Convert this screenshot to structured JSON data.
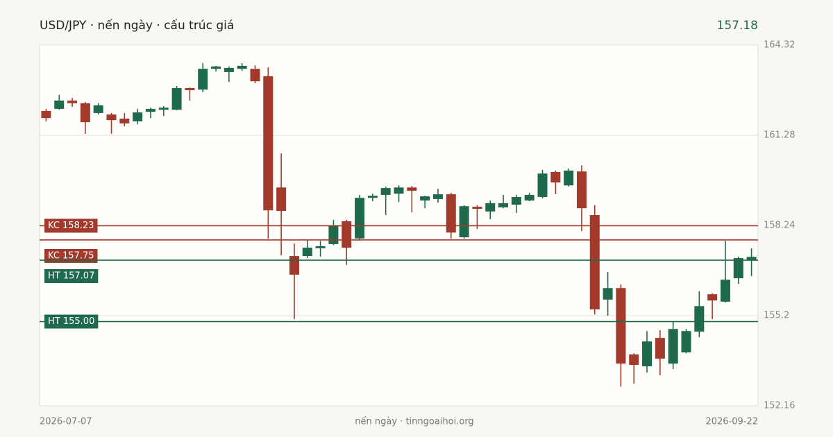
{
  "chart_data": {
    "type": "candlestick",
    "title": "USD/JPY · nến ngày · cấu trúc giá",
    "last_price": {
      "value": 157.18,
      "label": "157.18"
    },
    "footer": "nến ngày · tinngoaihoi.org",
    "categories": [
      "2026-07-07",
      null,
      null,
      null,
      null,
      null,
      null,
      null,
      null,
      null,
      null,
      null,
      null,
      null,
      null,
      null,
      null,
      null,
      null,
      null,
      null,
      null,
      null,
      null,
      null,
      null,
      null,
      null,
      null,
      null,
      null,
      null,
      null,
      null,
      null,
      null,
      null,
      null,
      null,
      null,
      null,
      null,
      null,
      null,
      null,
      null,
      null,
      null,
      null,
      null,
      null,
      null,
      null,
      null,
      "2026-09-22"
    ],
    "open": [
      162.1,
      162.17,
      162.45,
      162.36,
      162.03,
      161.98,
      161.84,
      161.75,
      162.07,
      162.14,
      162.14,
      162.87,
      162.82,
      163.52,
      163.41,
      163.52,
      163.52,
      163.27,
      159.52,
      157.21,
      157.21,
      157.47,
      157.61,
      158.38,
      157.8,
      159.17,
      159.27,
      159.31,
      159.52,
      159.08,
      159.13,
      159.29,
      157.84,
      158.87,
      158.71,
      158.85,
      158.94,
      159.08,
      159.2,
      160.04,
      159.59,
      160.06,
      158.59,
      155.74,
      156.13,
      153.89,
      153.49,
      154.45,
      153.58,
      153.96,
      154.66,
      155.92,
      155.67,
      156.46,
      157.07
    ],
    "high": [
      162.17,
      162.64,
      162.54,
      162.4,
      162.36,
      162.03,
      162.03,
      162.17,
      162.21,
      162.26,
      162.94,
      162.89,
      163.71,
      163.62,
      163.6,
      163.71,
      163.64,
      163.57,
      160.67,
      157.63,
      157.75,
      157.72,
      158.43,
      158.43,
      159.27,
      159.31,
      159.55,
      159.59,
      159.57,
      159.24,
      159.48,
      159.34,
      158.92,
      158.92,
      159.08,
      159.27,
      159.27,
      159.34,
      160.11,
      160.09,
      160.16,
      160.27,
      158.92,
      156.67,
      156.25,
      153.93,
      154.68,
      154.71,
      155.01,
      154.75,
      156.02,
      155.95,
      157.72,
      157.19,
      157.47
    ],
    "low": [
      161.75,
      162.14,
      162.24,
      161.33,
      161.98,
      161.33,
      161.58,
      161.65,
      161.86,
      161.93,
      162.12,
      162.45,
      162.73,
      163.43,
      163.08,
      163.45,
      163.03,
      157.79,
      157.23,
      155.08,
      157.14,
      157.19,
      157.58,
      156.91,
      157.77,
      159.06,
      158.59,
      159.03,
      158.68,
      158.82,
      159.01,
      157.8,
      157.8,
      158.12,
      158.45,
      158.82,
      158.66,
      159.06,
      159.15,
      159.29,
      159.55,
      158.05,
      155.24,
      155.2,
      152.81,
      152.91,
      153.28,
      153.19,
      153.4,
      153.93,
      154.47,
      155.08,
      155.64,
      156.27,
      156.53
    ],
    "close": [
      161.86,
      162.45,
      162.36,
      161.72,
      162.29,
      161.79,
      161.68,
      162.05,
      162.17,
      162.21,
      162.87,
      162.8,
      163.52,
      163.6,
      163.55,
      163.62,
      163.1,
      158.75,
      158.73,
      156.58,
      157.49,
      157.54,
      158.24,
      157.49,
      159.17,
      159.24,
      159.5,
      159.52,
      159.41,
      159.22,
      159.29,
      158.0,
      158.89,
      158.8,
      158.99,
      158.99,
      159.2,
      159.27,
      159.99,
      159.69,
      160.09,
      158.82,
      155.41,
      156.13,
      153.58,
      153.54,
      154.33,
      153.75,
      154.75,
      154.68,
      155.52,
      155.71,
      156.41,
      157.14,
      157.18
    ],
    "up_color": "#1f6a4f",
    "down_color": "#a23a2b",
    "levels": [
      {
        "label": "KC 158.23",
        "value": 158.23,
        "color": "#a23a2b"
      },
      {
        "label": "KC 157.75",
        "value": 157.75,
        "color": "#a23a2b"
      },
      {
        "label": "HT 157.07",
        "value": 157.07,
        "color": "#1f6a4f"
      },
      {
        "label": "HT 155.00",
        "value": 155.0,
        "color": "#1f6a4f"
      }
    ],
    "ylim": [
      152.16,
      164.32
    ],
    "yticks": [
      164.32,
      161.28,
      158.24,
      155.2,
      152.16
    ],
    "grid": true
  }
}
